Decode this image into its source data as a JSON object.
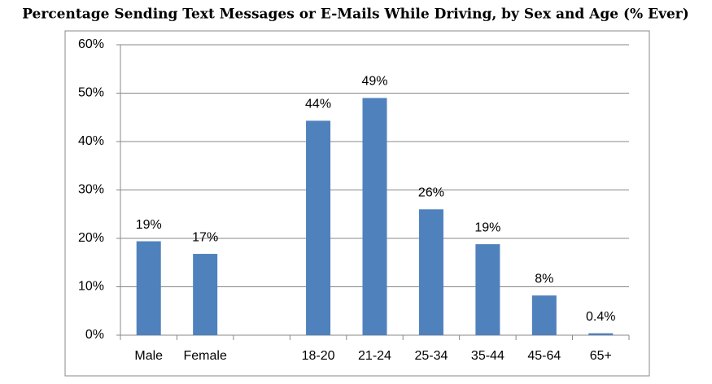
{
  "chart_data": {
    "type": "bar",
    "title": "Percentage Sending Text Messages or E-Mails While Driving, by Sex and Age (% Ever)",
    "categories": [
      "Male",
      "Female",
      null,
      "18-20",
      "21-24",
      "25-34",
      "35-44",
      "45-64",
      "65+"
    ],
    "values": [
      19.4,
      16.8,
      null,
      44.3,
      49,
      26,
      18.8,
      8.2,
      0.4
    ],
    "value_labels": [
      "19%",
      "17%",
      null,
      "44%",
      "49%",
      "26%",
      "19%",
      "8%",
      "0.4%"
    ],
    "color": "#4f81bd",
    "ylim": [
      0,
      60
    ],
    "yticks": [
      {
        "value": 0,
        "label": "0%"
      },
      {
        "value": 10,
        "label": "10%"
      },
      {
        "value": 20,
        "label": "20%"
      },
      {
        "value": 30,
        "label": "30%"
      },
      {
        "value": 40,
        "label": "40%"
      },
      {
        "value": 50,
        "label": "50%"
      },
      {
        "value": 60,
        "label": "60%"
      }
    ],
    "grid": true
  }
}
